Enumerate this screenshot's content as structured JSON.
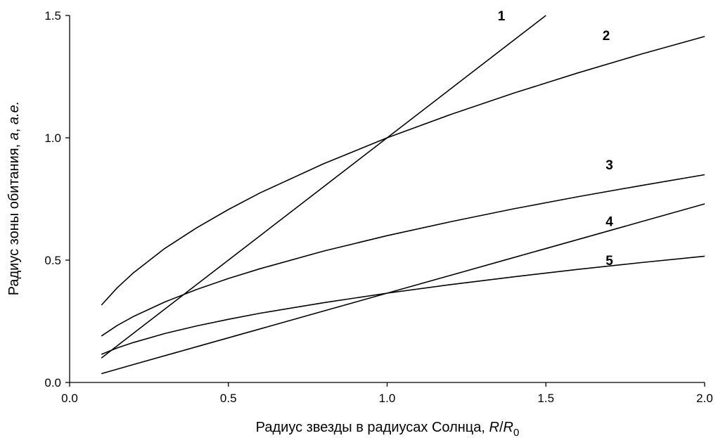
{
  "chart_data": {
    "type": "line",
    "xlabel_parts": [
      "Радиус звезды в радиусах Солнца, ",
      "R",
      "/",
      "R",
      "0"
    ],
    "ylabel_parts": [
      "Радиус зоны обитания, ",
      "a",
      ", ",
      "а.е."
    ],
    "xlim": [
      0.0,
      2.0
    ],
    "ylim": [
      0.0,
      1.5
    ],
    "xticks": [
      "0.0",
      "0.5",
      "1.0",
      "1.5",
      "2.0"
    ],
    "yticks": [
      "0.0",
      "0.5",
      "1.0",
      "1.5"
    ],
    "grid": false,
    "legend": "none",
    "series": [
      {
        "label": "1",
        "x": [
          0.1,
          0.2,
          0.4,
          0.6,
          0.8,
          1.0,
          1.2,
          1.4,
          1.5
        ],
        "y": [
          0.1,
          0.2,
          0.4,
          0.6,
          0.8,
          1.0,
          1.2,
          1.4,
          1.5
        ]
      },
      {
        "label": "2",
        "x": [
          0.1,
          0.15,
          0.2,
          0.3,
          0.4,
          0.5,
          0.6,
          0.8,
          1.0,
          1.2,
          1.4,
          1.6,
          1.8,
          2.0
        ],
        "y": [
          0.316,
          0.387,
          0.447,
          0.548,
          0.632,
          0.707,
          0.775,
          0.894,
          1.0,
          1.095,
          1.183,
          1.265,
          1.342,
          1.414
        ]
      },
      {
        "label": "3",
        "x": [
          0.1,
          0.15,
          0.2,
          0.3,
          0.4,
          0.5,
          0.6,
          0.8,
          1.0,
          1.2,
          1.4,
          1.6,
          1.8,
          2.0
        ],
        "y": [
          0.19,
          0.233,
          0.269,
          0.329,
          0.38,
          0.425,
          0.465,
          0.537,
          0.6,
          0.657,
          0.71,
          0.759,
          0.805,
          0.849
        ]
      },
      {
        "label": "4",
        "x": [
          0.1,
          0.2,
          0.4,
          0.6,
          0.8,
          1.0,
          1.2,
          1.4,
          1.6,
          1.8,
          2.0
        ],
        "y": [
          0.036,
          0.073,
          0.146,
          0.219,
          0.292,
          0.365,
          0.438,
          0.511,
          0.584,
          0.657,
          0.73
        ]
      },
      {
        "label": "5",
        "x": [
          0.1,
          0.15,
          0.2,
          0.3,
          0.4,
          0.5,
          0.6,
          0.8,
          1.0,
          1.2,
          1.4,
          1.6,
          1.8,
          2.0
        ],
        "y": [
          0.115,
          0.141,
          0.163,
          0.2,
          0.231,
          0.258,
          0.283,
          0.326,
          0.365,
          0.4,
          0.432,
          0.462,
          0.49,
          0.516
        ]
      }
    ]
  }
}
